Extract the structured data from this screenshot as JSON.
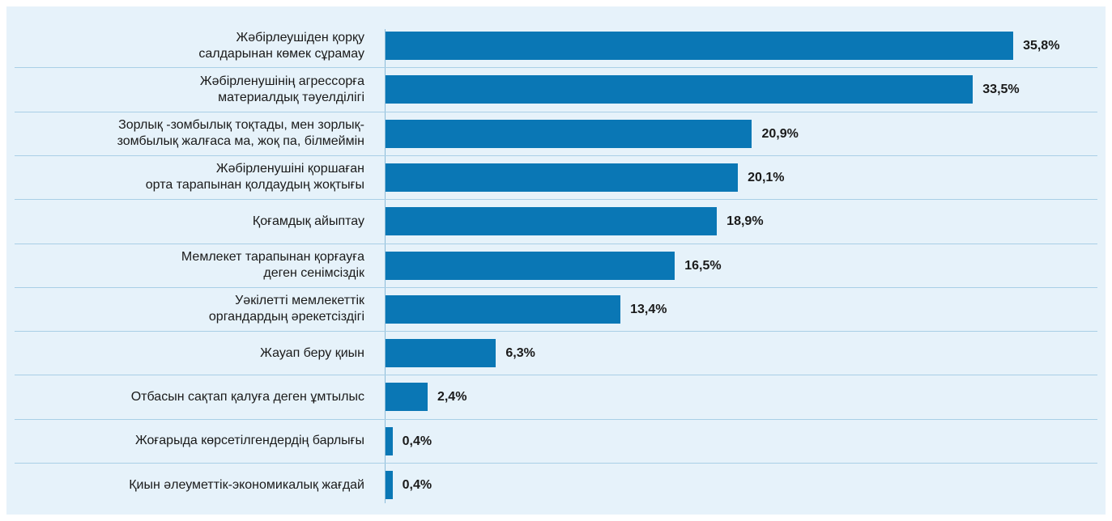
{
  "chart_data": {
    "type": "bar",
    "orientation": "horizontal",
    "categories": [
      "Жәбірлеушіден қорқу\nсалдарынан көмек сұрамау",
      "Жәбірленушінің агрессорға\nматериалдық тәуелділігі",
      "Зорлық -зомбылық тоқтады, мен зорлық-\nзомбылық жалғаса ма, жоқ па, білмеймін",
      "Жәбірленушіні қоршаған\nорта тарапынан қолдаудың жоқтығы",
      "Қоғамдық айыптау",
      "Мемлекет тарапынан қорғауға\nдеген сенімсіздік",
      "Уәкілетті мемлекеттік\nоргандардың әрекетсіздігі",
      "Жауап беру қиын",
      "Отбасын сақтап қалуға деген ұмтылыс",
      "Жоғарыда көрсетілгендердің барлығы",
      "Қиын әлеуметтік-экономикалық жағдай"
    ],
    "values": [
      35.8,
      33.5,
      20.9,
      20.1,
      18.9,
      16.5,
      13.4,
      6.3,
      2.4,
      0.4,
      0.4
    ],
    "value_labels": [
      "35,8%",
      "33,5%",
      "20,9%",
      "20,1%",
      "18,9%",
      "16,5%",
      "13,4%",
      "6,3%",
      "2,4%",
      "0,4%",
      "0,4%"
    ],
    "color": "#0a77b5",
    "xlim": [
      0,
      40
    ]
  }
}
